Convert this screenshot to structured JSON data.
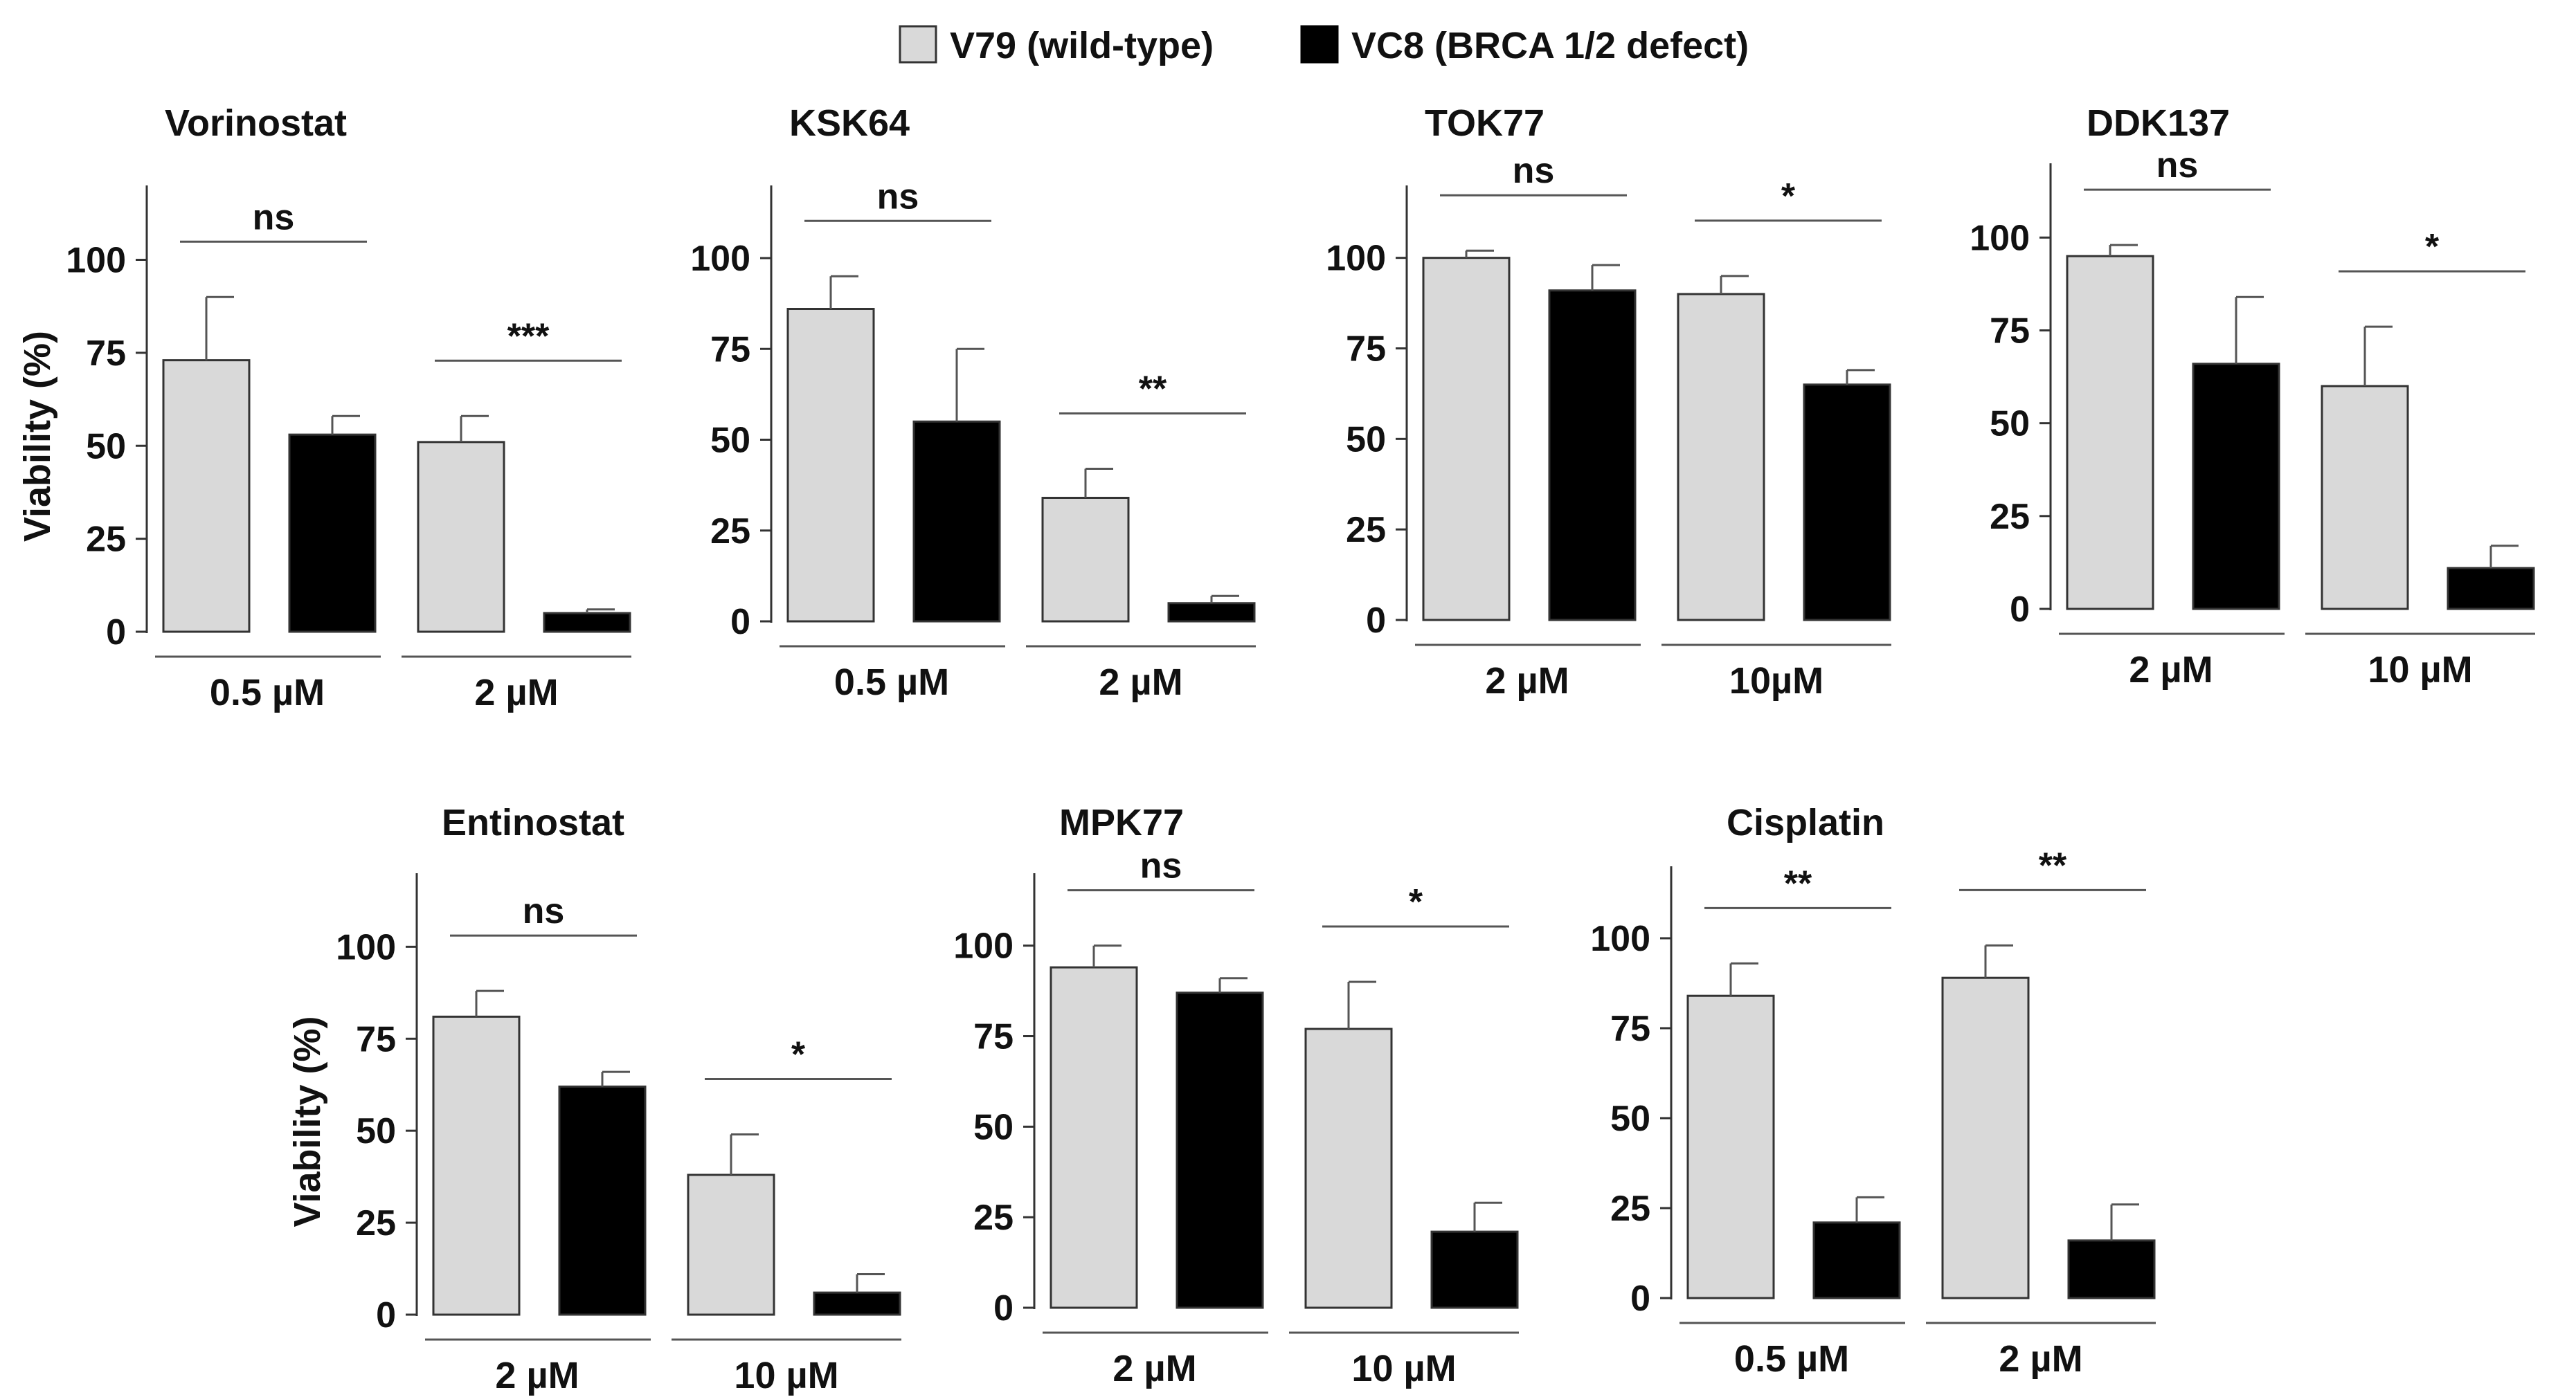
{
  "legend": {
    "items": [
      {
        "label": "V79 (wild-type)",
        "color": "#d9d9d9"
      },
      {
        "label": "VC8 (BRCA 1/2 defect)",
        "color": "#000000"
      }
    ]
  },
  "chart_data": [
    {
      "type": "bar",
      "title": "Vorinostat",
      "ylabel": "Viability (%)",
      "ylim": [
        0,
        120
      ],
      "yticks": [
        0,
        25,
        50,
        75,
        100
      ],
      "categories": [
        "0.5 µM",
        "2 µM"
      ],
      "series": [
        {
          "name": "V79 (wild-type)",
          "values": [
            73,
            51
          ],
          "errors": [
            17,
            7
          ]
        },
        {
          "name": "VC8 (BRCA 1/2 defect)",
          "values": [
            53,
            5
          ],
          "errors": [
            5,
            1
          ]
        }
      ],
      "significance": [
        "ns",
        "***"
      ]
    },
    {
      "type": "bar",
      "title": "KSK64",
      "ylabel": "",
      "ylim": [
        0,
        120
      ],
      "yticks": [
        0,
        25,
        50,
        75,
        100
      ],
      "categories": [
        "0.5 µM",
        "2 µM"
      ],
      "series": [
        {
          "name": "V79 (wild-type)",
          "values": [
            86,
            34
          ],
          "errors": [
            9,
            8
          ]
        },
        {
          "name": "VC8 (BRCA 1/2 defect)",
          "values": [
            55,
            5
          ],
          "errors": [
            20,
            2
          ]
        }
      ],
      "significance": [
        "ns",
        "**"
      ]
    },
    {
      "type": "bar",
      "title": "TOK77",
      "ylabel": "",
      "ylim": [
        0,
        120
      ],
      "yticks": [
        0,
        25,
        50,
        75,
        100
      ],
      "categories": [
        "2 µM",
        "10µM"
      ],
      "series": [
        {
          "name": "V79 (wild-type)",
          "values": [
            100,
            90
          ],
          "errors": [
            2,
            5
          ]
        },
        {
          "name": "VC8 (BRCA 1/2 defect)",
          "values": [
            91,
            65
          ],
          "errors": [
            7,
            4
          ]
        }
      ],
      "significance": [
        "ns",
        "*"
      ]
    },
    {
      "type": "bar",
      "title": "DDK137",
      "ylabel": "",
      "ylim": [
        0,
        120
      ],
      "yticks": [
        0,
        25,
        50,
        75,
        100
      ],
      "categories": [
        "2 µM",
        "10 µM"
      ],
      "series": [
        {
          "name": "V79 (wild-type)",
          "values": [
            95,
            60
          ],
          "errors": [
            3,
            16
          ]
        },
        {
          "name": "VC8 (BRCA 1/2 defect)",
          "values": [
            66,
            11
          ],
          "errors": [
            18,
            6
          ]
        }
      ],
      "significance": [
        "ns",
        "*"
      ]
    },
    {
      "type": "bar",
      "title": "Entinostat",
      "ylabel": "Viability (%)",
      "ylim": [
        0,
        120
      ],
      "yticks": [
        0,
        25,
        50,
        75,
        100
      ],
      "categories": [
        "2 µM",
        "10 µM"
      ],
      "series": [
        {
          "name": "V79 (wild-type)",
          "values": [
            81,
            38
          ],
          "errors": [
            7,
            11
          ]
        },
        {
          "name": "VC8 (BRCA 1/2 defect)",
          "values": [
            62,
            6
          ],
          "errors": [
            4,
            5
          ]
        }
      ],
      "significance": [
        "ns",
        "*"
      ]
    },
    {
      "type": "bar",
      "title": "MPK77",
      "ylabel": "",
      "ylim": [
        0,
        120
      ],
      "yticks": [
        0,
        25,
        50,
        75,
        100
      ],
      "categories": [
        "2 µM",
        "10 µM"
      ],
      "series": [
        {
          "name": "V79 (wild-type)",
          "values": [
            94,
            77
          ],
          "errors": [
            6,
            13
          ]
        },
        {
          "name": "VC8 (BRCA 1/2 defect)",
          "values": [
            87,
            21
          ],
          "errors": [
            4,
            8
          ]
        }
      ],
      "significance": [
        "ns",
        "*"
      ]
    },
    {
      "type": "bar",
      "title": "Cisplatin",
      "ylabel": "",
      "ylim": [
        0,
        120
      ],
      "yticks": [
        0,
        25,
        50,
        75,
        100
      ],
      "categories": [
        "0.5 µM",
        "2 µM"
      ],
      "series": [
        {
          "name": "V79 (wild-type)",
          "values": [
            84,
            89
          ],
          "errors": [
            9,
            9
          ]
        },
        {
          "name": "VC8 (BRCA 1/2 defect)",
          "values": [
            21,
            16
          ],
          "errors": [
            7,
            10
          ]
        }
      ],
      "significance": [
        "**",
        "**"
      ]
    }
  ]
}
